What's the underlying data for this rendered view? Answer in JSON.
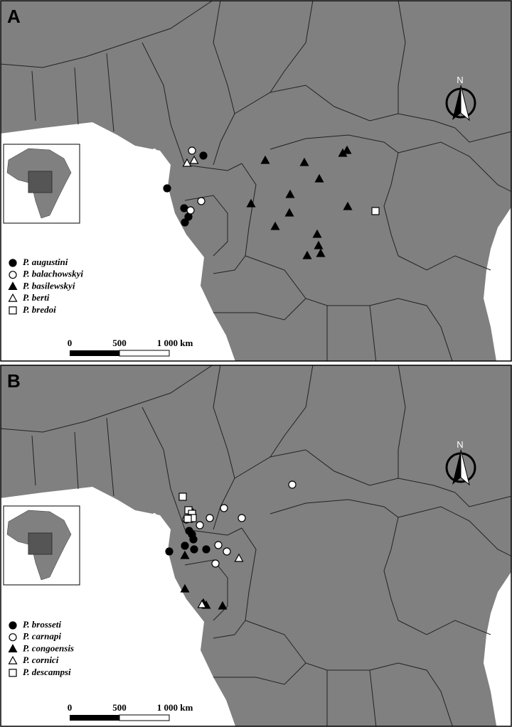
{
  "panels": [
    {
      "label": "A",
      "north": "N",
      "legend": [
        "P. augustini",
        "P. balachowskyi",
        "P. basilewskyi",
        "P. berti",
        "P. bredoi"
      ],
      "scale_labels": [
        "0",
        "500",
        "1 000 km"
      ]
    },
    {
      "label": "B",
      "north": "N",
      "legend": [
        "P. brosseti",
        "P. carnapi",
        "P. congoensis",
        "P. cornici",
        "P. descampsi"
      ],
      "scale_labels": [
        "0",
        "500",
        "1 000 km"
      ]
    }
  ]
}
